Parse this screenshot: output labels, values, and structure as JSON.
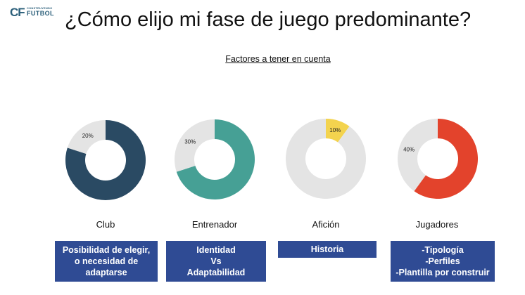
{
  "logo": {
    "mark": "CF",
    "top": "CONSTRUYENDO",
    "bottom": "FUTBOL"
  },
  "title": "¿Cómo elijo mi fase de juego predominante?",
  "subtitle": "Factores a tener en cuenta",
  "colors": {
    "box": "#2f4b94",
    "track": "#e4e4e4"
  },
  "chart_data": [
    {
      "type": "pie",
      "category": "Club",
      "values": [
        80,
        20
      ],
      "label": "20%",
      "labeled_index": 1,
      "colors": [
        "#2a4a63",
        "#e4e4e4"
      ]
    },
    {
      "type": "pie",
      "category": "Entrenador",
      "values": [
        70,
        30
      ],
      "label": "30%",
      "labeled_index": 1,
      "colors": [
        "#46a095",
        "#e4e4e4"
      ]
    },
    {
      "type": "pie",
      "category": "Afición",
      "values": [
        10,
        90
      ],
      "label": "10%",
      "labeled_index": 0,
      "colors": [
        "#f3d34e",
        "#e4e4e4"
      ]
    },
    {
      "type": "pie",
      "category": "Jugadores",
      "values": [
        60,
        40
      ],
      "label": "40%",
      "labeled_index": 1,
      "colors": [
        "#e3432c",
        "#e4e4e4"
      ]
    }
  ],
  "boxes": [
    {
      "lines": [
        "Posibilidad de elegir,",
        "o necesidad de",
        "adaptarse"
      ]
    },
    {
      "lines": [
        "Identidad",
        "Vs",
        "Adaptabilidad"
      ]
    },
    {
      "lines": [
        "Historia"
      ]
    },
    {
      "lines": [
        "-Tipología",
        "-Perfiles",
        "-Plantilla por construir"
      ]
    }
  ]
}
